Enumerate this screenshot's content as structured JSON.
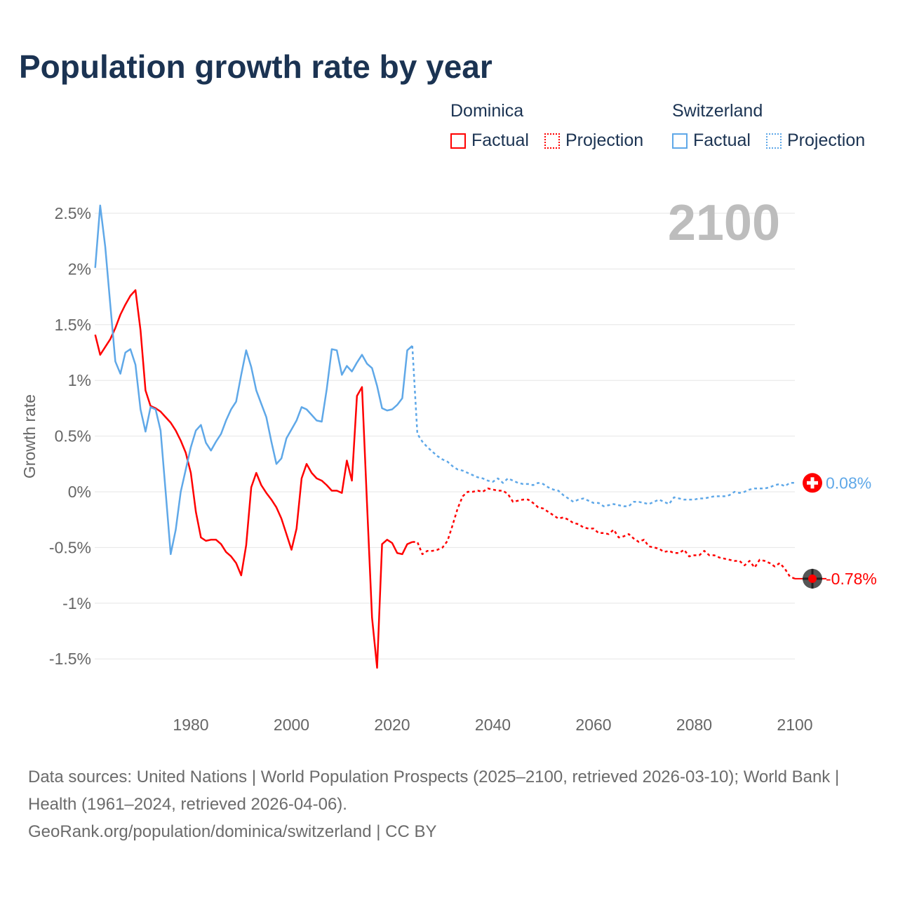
{
  "title": "Population growth rate by year",
  "legend": {
    "groups": [
      {
        "name": "Dominica",
        "color": "#ff0000",
        "factual": "Factual",
        "projection": "Projection"
      },
      {
        "name": "Switzerland",
        "color": "#5fa8e8",
        "factual": "Factual",
        "projection": "Projection"
      }
    ]
  },
  "year_display": "2100",
  "footer": {
    "sources": "Data sources: United Nations | World Population Prospects (2025–2100, retrieved 2026-03-10); World Bank | Health (1961–2024, retrieved 2026-04-06).",
    "link": "GeoRank.org/population/dominica/switzerland | CC BY"
  },
  "chart_data": {
    "type": "line",
    "title": "Population growth rate by year",
    "xlabel": "",
    "ylabel": "Growth rate",
    "xlim": [
      1961,
      2100
    ],
    "ylim": [
      -1.75,
      2.6
    ],
    "x_ticks": [
      1980,
      2000,
      2020,
      2040,
      2060,
      2080,
      2100
    ],
    "y_ticks": [
      2.5,
      2,
      1.5,
      1,
      0.5,
      0,
      -0.5,
      -1,
      -1.5
    ],
    "y_tick_labels": [
      "2.5%",
      "2%",
      "1.5%",
      "1%",
      "0.5%",
      "0%",
      "-0.5%",
      "-1%",
      "-1.5%"
    ],
    "end_labels": {
      "Switzerland": "0.08%",
      "Dominica": "-0.78%"
    },
    "series": [
      {
        "name": "Dominica Factual",
        "country": "Dominica",
        "kind": "factual",
        "color": "#ff0000",
        "start": 1961,
        "values": [
          1.41,
          1.23,
          1.3,
          1.37,
          1.47,
          1.59,
          1.68,
          1.76,
          1.81,
          1.45,
          0.91,
          0.77,
          0.75,
          0.72,
          0.67,
          0.62,
          0.55,
          0.46,
          0.35,
          0.17,
          -0.18,
          -0.41,
          -0.44,
          -0.43,
          -0.43,
          -0.47,
          -0.54,
          -0.58,
          -0.64,
          -0.75,
          -0.48,
          0.04,
          0.17,
          0.06,
          -0.01,
          -0.07,
          -0.14,
          -0.24,
          -0.38,
          -0.52,
          -0.33,
          0.12,
          0.25,
          0.17,
          0.12,
          0.1,
          0.06,
          0.01,
          0.01,
          -0.01,
          0.28,
          0.1,
          0.86,
          0.94,
          -0.1,
          -1.13,
          -1.58,
          -0.47,
          -0.43,
          -0.46,
          -0.55,
          -0.56,
          -0.47,
          -0.45
        ]
      },
      {
        "name": "Dominica Projection",
        "country": "Dominica",
        "kind": "projection",
        "color": "#ff0000",
        "start": 2024,
        "values": [
          -0.45,
          -0.45,
          -0.56,
          -0.53,
          -0.53,
          -0.52,
          -0.5,
          -0.44,
          -0.3,
          -0.15,
          -0.04,
          0.0,
          0.0,
          0.01,
          0.0,
          0.03,
          0.02,
          0.01,
          0.01,
          -0.02,
          -0.09,
          -0.08,
          -0.07,
          -0.07,
          -0.1,
          -0.14,
          -0.15,
          -0.18,
          -0.21,
          -0.24,
          -0.23,
          -0.25,
          -0.28,
          -0.29,
          -0.32,
          -0.33,
          -0.33,
          -0.37,
          -0.37,
          -0.38,
          -0.34,
          -0.41,
          -0.4,
          -0.38,
          -0.42,
          -0.45,
          -0.43,
          -0.49,
          -0.5,
          -0.51,
          -0.54,
          -0.53,
          -0.55,
          -0.55,
          -0.52,
          -0.58,
          -0.57,
          -0.57,
          -0.53,
          -0.57,
          -0.57,
          -0.59,
          -0.6,
          -0.61,
          -0.62,
          -0.62,
          -0.66,
          -0.62,
          -0.68,
          -0.61,
          -0.62,
          -0.64,
          -0.67,
          -0.64,
          -0.69,
          -0.76,
          -0.78
        ]
      },
      {
        "name": "Switzerland Factual",
        "country": "Switzerland",
        "kind": "factual",
        "color": "#5fa8e8",
        "start": 1961,
        "values": [
          2.01,
          2.57,
          2.2,
          1.68,
          1.17,
          1.06,
          1.25,
          1.28,
          1.14,
          0.74,
          0.54,
          0.76,
          0.74,
          0.55,
          0.0,
          -0.56,
          -0.34,
          0.0,
          0.2,
          0.4,
          0.55,
          0.6,
          0.44,
          0.37,
          0.45,
          0.52,
          0.64,
          0.74,
          0.81,
          1.05,
          1.27,
          1.12,
          0.91,
          0.79,
          0.67,
          0.45,
          0.25,
          0.3,
          0.48,
          0.56,
          0.64,
          0.76,
          0.74,
          0.69,
          0.64,
          0.63,
          0.92,
          1.28,
          1.27,
          1.05,
          1.13,
          1.08,
          1.16,
          1.23,
          1.15,
          1.11,
          0.95,
          0.75,
          0.73,
          0.74,
          0.78,
          0.84,
          1.27,
          1.31
        ]
      },
      {
        "name": "Switzerland Projection",
        "country": "Switzerland",
        "kind": "projection",
        "color": "#5fa8e8",
        "start": 2024,
        "values": [
          1.31,
          0.52,
          0.45,
          0.4,
          0.36,
          0.32,
          0.29,
          0.27,
          0.23,
          0.2,
          0.19,
          0.17,
          0.15,
          0.13,
          0.12,
          0.1,
          0.09,
          0.12,
          0.08,
          0.12,
          0.1,
          0.08,
          0.07,
          0.07,
          0.06,
          0.08,
          0.07,
          0.04,
          0.02,
          0.01,
          -0.03,
          -0.06,
          -0.09,
          -0.07,
          -0.06,
          -0.08,
          -0.1,
          -0.1,
          -0.13,
          -0.12,
          -0.11,
          -0.12,
          -0.13,
          -0.13,
          -0.09,
          -0.09,
          -0.1,
          -0.11,
          -0.09,
          -0.07,
          -0.09,
          -0.11,
          -0.05,
          -0.06,
          -0.07,
          -0.07,
          -0.07,
          -0.06,
          -0.06,
          -0.05,
          -0.04,
          -0.04,
          -0.04,
          -0.03,
          0.0,
          -0.01,
          0.0,
          0.02,
          0.03,
          0.03,
          0.03,
          0.04,
          0.06,
          0.07,
          0.05,
          0.08,
          0.08
        ]
      }
    ]
  }
}
